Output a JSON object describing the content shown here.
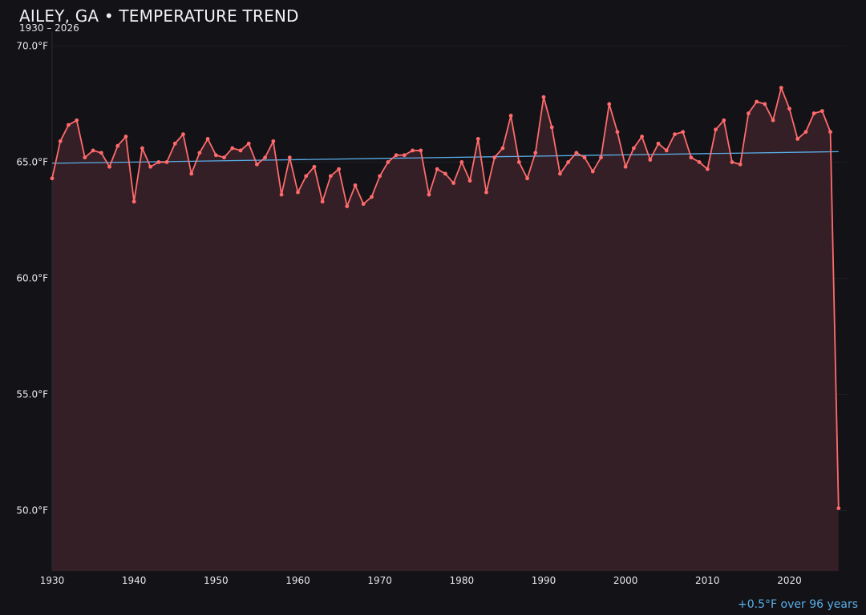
{
  "header": {
    "title": "AILEY, GA • TEMPERATURE TREND",
    "subtitle": "1930 – 2026"
  },
  "footer": {
    "trend_note": "+0.5°F over 96 years"
  },
  "colors": {
    "background": "#121217",
    "line": "#ff6b6b",
    "fill": "#341f26",
    "trend": "#5aaee8",
    "grid": "#1e1e24"
  },
  "chart_data": {
    "type": "line",
    "title": "AILEY, GA • TEMPERATURE TREND",
    "subtitle": "1930 – 2026",
    "xlabel": "",
    "ylabel": "",
    "xlim": [
      1930,
      2027
    ],
    "ylim": [
      47.4,
      70.6
    ],
    "x_ticks": [
      1930,
      1940,
      1950,
      1960,
      1970,
      1980,
      1990,
      2000,
      2010,
      2020
    ],
    "y_ticks": [
      50,
      55,
      60,
      65,
      70
    ],
    "y_tick_labels": [
      "50.0°F",
      "55.0°F",
      "60.0°F",
      "65.0°F",
      "70.0°F"
    ],
    "grid": true,
    "x": [
      1930,
      1931,
      1932,
      1933,
      1934,
      1935,
      1936,
      1937,
      1938,
      1939,
      1940,
      1941,
      1942,
      1943,
      1944,
      1945,
      1946,
      1947,
      1948,
      1949,
      1950,
      1951,
      1952,
      1953,
      1954,
      1955,
      1956,
      1957,
      1958,
      1959,
      1960,
      1961,
      1962,
      1963,
      1964,
      1965,
      1966,
      1967,
      1968,
      1969,
      1970,
      1971,
      1972,
      1973,
      1974,
      1975,
      1976,
      1977,
      1978,
      1979,
      1980,
      1981,
      1982,
      1983,
      1984,
      1985,
      1986,
      1987,
      1988,
      1989,
      1990,
      1991,
      1992,
      1993,
      1994,
      1995,
      1996,
      1997,
      1998,
      1999,
      2000,
      2001,
      2002,
      2003,
      2004,
      2005,
      2006,
      2007,
      2008,
      2009,
      2010,
      2011,
      2012,
      2013,
      2014,
      2015,
      2016,
      2017,
      2018,
      2019,
      2020,
      2021,
      2022,
      2023,
      2024,
      2025,
      2026
    ],
    "series": [
      {
        "values": [
          64.3,
          65.9,
          66.6,
          66.8,
          65.2,
          65.5,
          65.4,
          64.8,
          65.7,
          66.1,
          63.3,
          65.6,
          64.8,
          65.0,
          65.0,
          65.8,
          66.2,
          64.5,
          65.4,
          66.0,
          65.3,
          65.2,
          65.6,
          65.5,
          65.8,
          64.9,
          65.2,
          65.9,
          63.6,
          65.2,
          63.7,
          64.4,
          64.8,
          63.3,
          64.4,
          64.7,
          63.1,
          64.0,
          63.2,
          63.5,
          64.4,
          65.0,
          65.3,
          65.3,
          65.5,
          65.5,
          63.6,
          64.7,
          64.5,
          64.1,
          65.0,
          64.2,
          66.0,
          63.7,
          65.2,
          65.6,
          67.0,
          65.0,
          64.3,
          65.4,
          67.8,
          66.5,
          64.5,
          65.0,
          65.4,
          65.2,
          64.6,
          65.2,
          67.5,
          66.3,
          64.8,
          65.6,
          66.1,
          65.1,
          65.8,
          65.5,
          66.2,
          66.3,
          65.2,
          65.0,
          64.7,
          66.4,
          66.8,
          65.0,
          64.9,
          67.1,
          67.6,
          67.5,
          66.8,
          68.2,
          67.3,
          66.0,
          66.3,
          67.1,
          67.2,
          66.3,
          50.1
        ]
      }
    ],
    "trend_line": {
      "x": [
        1930,
        2026
      ],
      "y": [
        64.95,
        65.45
      ]
    }
  }
}
